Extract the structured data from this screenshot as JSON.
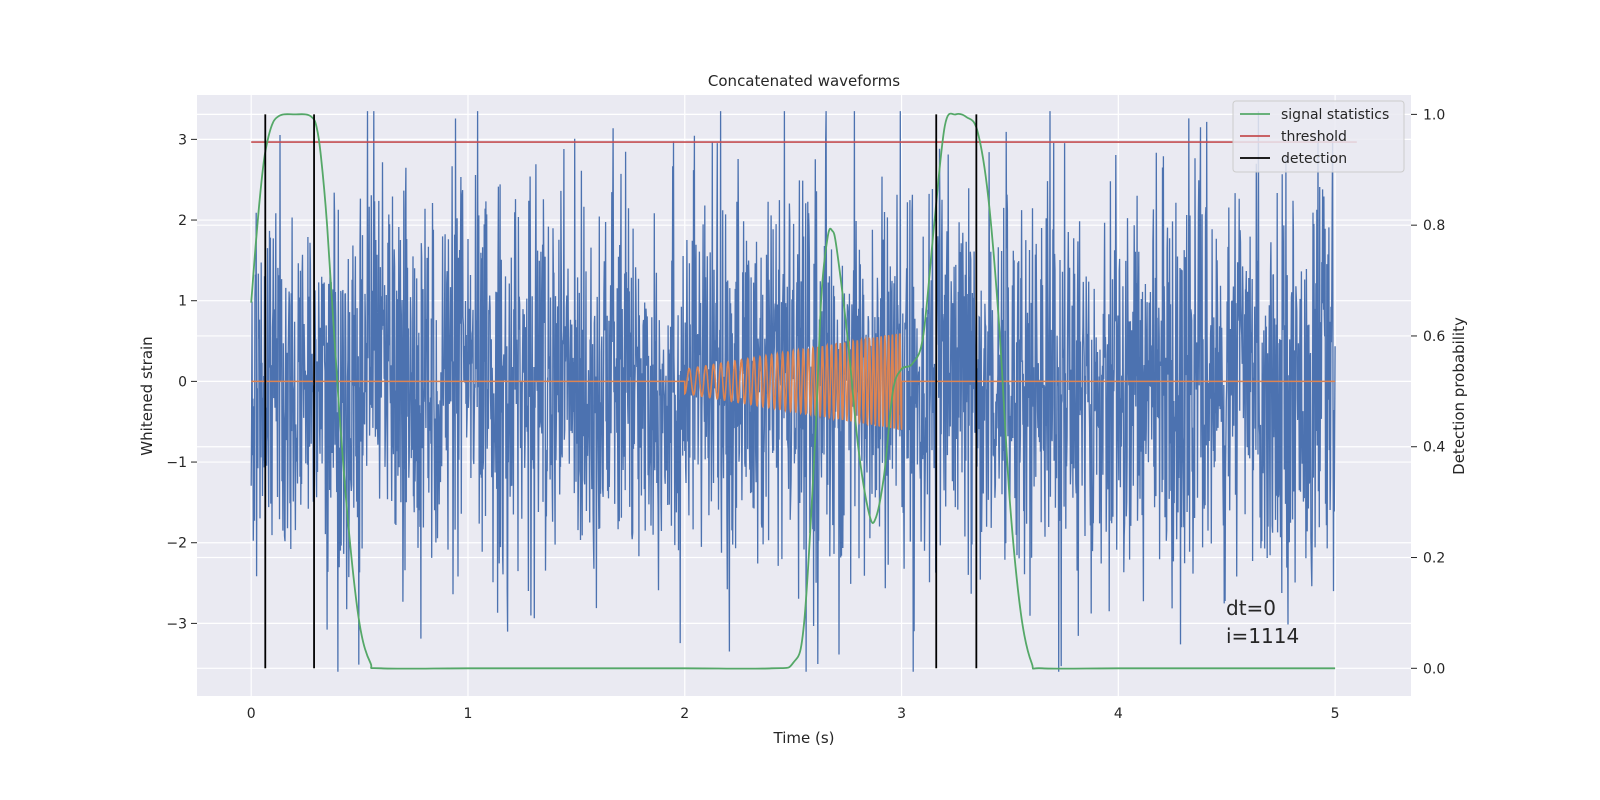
{
  "chart_data": {
    "type": "line",
    "title": "Concatenated waveforms",
    "xlabel": "Time (s)",
    "ylabel": "Whitened strain",
    "ylabel_right": "Detection probability",
    "xlim": [
      -0.25,
      5.35
    ],
    "ylim": [
      -3.9,
      3.55
    ],
    "ylim_right": [
      -0.05,
      1.035
    ],
    "xticks": [
      0,
      1,
      2,
      3,
      4,
      5
    ],
    "yticks": [
      -3,
      -2,
      -1,
      0,
      1,
      2,
      3
    ],
    "yticks_right": [
      0.0,
      0.2,
      0.4,
      0.6,
      0.8,
      1.0
    ],
    "xtick_labels": [
      "0",
      "1",
      "2",
      "3",
      "4",
      "5"
    ],
    "ytick_labels": [
      "−3",
      "−2",
      "−1",
      "0",
      "1",
      "2",
      "3"
    ],
    "ytick_right_labels": [
      "0.0",
      "0.2",
      "0.4",
      "0.6",
      "0.8",
      "1.0"
    ],
    "grid": true,
    "legend_position": "top-right",
    "colors": {
      "plot_bg": "#eaeaf2",
      "grid": "#ffffff",
      "strain": "#4c72b0",
      "injected": "#dd8452",
      "statistics": "#55a868",
      "threshold": "#c44e52",
      "detection": "#000000"
    },
    "series": [
      {
        "name": "",
        "axis": "left",
        "kind": "noise",
        "x_range": [
          0,
          5
        ],
        "typical_amplitude": 1.2,
        "peak_max": 3.35,
        "peak_min": -3.6
      },
      {
        "name": "",
        "axis": "left",
        "kind": "chirp",
        "x_range": [
          2.0,
          3.0
        ],
        "amplitude_start": 0.15,
        "amplitude_end": 0.6
      },
      {
        "name": "signal statistics",
        "axis": "right",
        "x": [
          0.0,
          0.02,
          0.04,
          0.06,
          0.08,
          0.1,
          0.12,
          0.15,
          0.2,
          0.25,
          0.28,
          0.3,
          0.32,
          0.35,
          0.4,
          0.45,
          0.5,
          0.55,
          0.6,
          1.0,
          1.5,
          2.0,
          2.4,
          2.5,
          2.55,
          2.6,
          2.63,
          2.66,
          2.68,
          2.7,
          2.75,
          2.8,
          2.85,
          2.88,
          2.92,
          2.96,
          3.0,
          3.05,
          3.1,
          3.15,
          3.2,
          3.25,
          3.3,
          3.35,
          3.4,
          3.45,
          3.5,
          3.55,
          3.6,
          3.65,
          4.0,
          4.5,
          5.0
        ],
        "y": [
          0.66,
          0.76,
          0.85,
          0.92,
          0.96,
          0.985,
          0.995,
          1.0,
          1.0,
          1.0,
          0.995,
          0.98,
          0.93,
          0.8,
          0.5,
          0.25,
          0.08,
          0.01,
          0.0,
          0.0,
          0.0,
          0.0,
          0.0,
          0.01,
          0.08,
          0.4,
          0.67,
          0.78,
          0.79,
          0.76,
          0.6,
          0.4,
          0.28,
          0.27,
          0.35,
          0.5,
          0.54,
          0.55,
          0.6,
          0.8,
          0.98,
          1.0,
          0.995,
          0.97,
          0.85,
          0.62,
          0.3,
          0.1,
          0.01,
          0.0,
          0.0,
          0.0,
          0.0
        ]
      },
      {
        "name": "threshold",
        "axis": "right",
        "x": [
          0,
          5.1
        ],
        "y": [
          0.95,
          0.95
        ]
      },
      {
        "name": "detection",
        "axis": "right",
        "kind": "vlines",
        "x": [
          0.065,
          0.29,
          3.16,
          3.345
        ],
        "y_range": [
          0.0,
          1.0
        ]
      }
    ],
    "annotations": [
      "dt=0",
      "i=1114"
    ]
  }
}
